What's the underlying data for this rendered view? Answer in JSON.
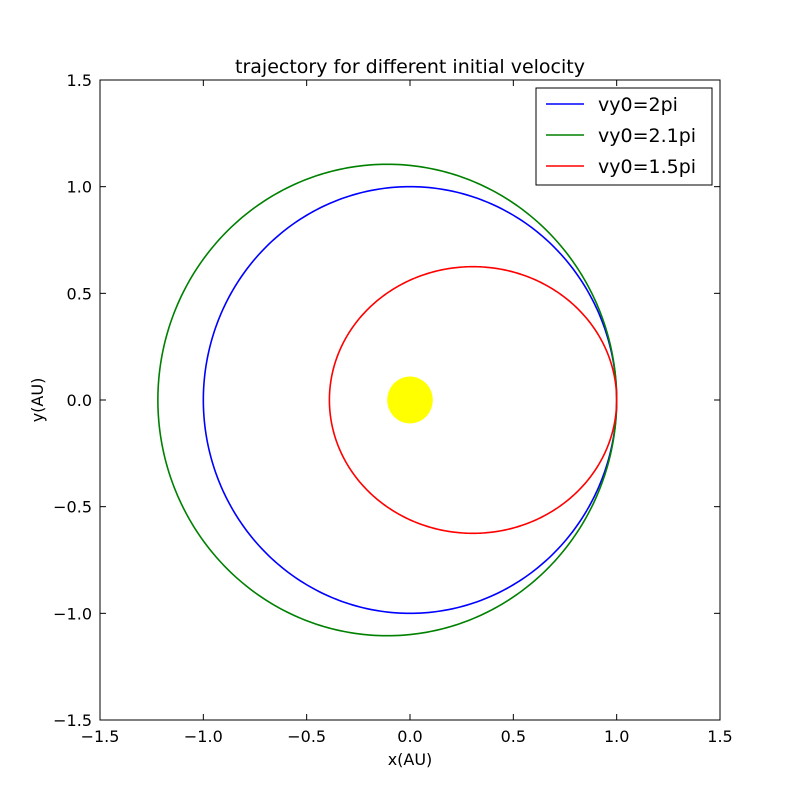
{
  "chart_data": {
    "type": "line",
    "title": "trajectory for different initial velocity",
    "xlabel": "x(AU)",
    "ylabel": "y(AU)",
    "xlim": [
      -1.5,
      1.5
    ],
    "ylim": [
      -1.5,
      1.5
    ],
    "xticks": [
      -1.5,
      -1.0,
      -0.5,
      0.0,
      0.5,
      1.0,
      1.5
    ],
    "yticks": [
      -1.5,
      -1.0,
      -0.5,
      0.0,
      0.5,
      1.0,
      1.5
    ],
    "xtick_labels": [
      "−1.5",
      "−1.0",
      "−0.5",
      "0.0",
      "0.5",
      "1.0",
      "1.5"
    ],
    "ytick_labels": [
      "−1.5",
      "−1.0",
      "−0.5",
      "0.0",
      "0.5",
      "1.0",
      "1.5"
    ],
    "grid": false,
    "legend_position": "top-right",
    "series": [
      {
        "name": "vy0=2pi",
        "color": "#0000ff",
        "orbit": {
          "center_x": 0.0,
          "center_y": 0.0,
          "semi_major_x": 1.0,
          "semi_minor_y": 1.0
        },
        "x": [
          1.0,
          0.866,
          0.5,
          0.0,
          -0.5,
          -0.866,
          -1.0,
          -0.866,
          -0.5,
          0.0,
          0.5,
          0.866,
          1.0
        ],
        "y": [
          0.0,
          0.5,
          0.866,
          1.0,
          0.866,
          0.5,
          0.0,
          -0.5,
          -0.866,
          -1.0,
          -0.866,
          -0.5,
          0.0
        ]
      },
      {
        "name": "vy0=2.1pi",
        "color": "#008000",
        "orbit": {
          "center_x": -0.11,
          "center_y": 0.0,
          "semi_major_x": 1.11,
          "semi_minor_y": 1.105
        },
        "x": [
          1.0,
          0.851,
          0.445,
          -0.11,
          -0.665,
          -1.071,
          -1.22,
          -1.071,
          -0.665,
          -0.11,
          0.445,
          0.851,
          1.0
        ],
        "y": [
          0.0,
          0.553,
          0.957,
          1.105,
          0.957,
          0.553,
          0.0,
          -0.553,
          -0.957,
          -1.105,
          -0.957,
          -0.553,
          0.0
        ]
      },
      {
        "name": "vy0=1.5pi",
        "color": "#ff0000",
        "orbit": {
          "center_x": 0.305,
          "center_y": 0.0,
          "semi_major_x": 0.695,
          "semi_minor_y": 0.625
        },
        "x": [
          1.0,
          0.907,
          0.653,
          0.305,
          -0.043,
          -0.297,
          -0.39,
          -0.297,
          -0.043,
          0.305,
          0.653,
          0.907,
          1.0
        ],
        "y": [
          0.0,
          0.313,
          0.541,
          0.625,
          0.541,
          0.313,
          0.0,
          -0.313,
          -0.541,
          -0.625,
          -0.541,
          -0.313,
          0.0
        ]
      }
    ],
    "annotations": [
      {
        "kind": "filled-circle",
        "label": "",
        "x": 0.0,
        "y": 0.0,
        "radius": 0.11,
        "color": "#ffff00"
      }
    ]
  }
}
